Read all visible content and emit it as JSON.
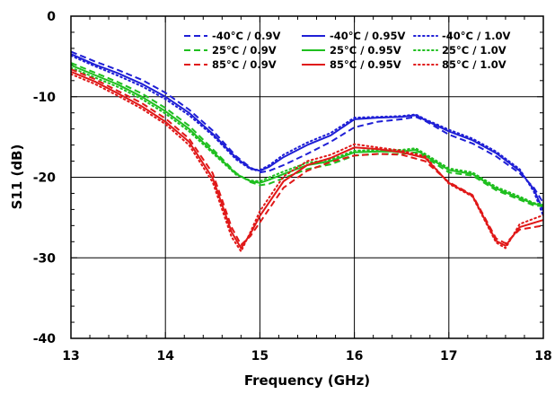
{
  "chart_data": {
    "type": "line",
    "title": "",
    "xlabel": "Frequency (GHz)",
    "ylabel": "S11 (dB)",
    "xlim": [
      13,
      18
    ],
    "ylim": [
      -40,
      0
    ],
    "x_ticks": [
      13,
      14,
      15,
      16,
      17,
      18
    ],
    "y_ticks": [
      0,
      -10,
      -20,
      -30,
      -40
    ],
    "x_tick_labels": [
      "13",
      "14",
      "15",
      "16",
      "17",
      "18"
    ],
    "y_tick_labels": [
      "0",
      "-10",
      "-20",
      "-30",
      "-40"
    ],
    "grid": true,
    "legend_position": "top-right",
    "series": [
      {
        "name": "-40°C / 0.9V",
        "color": "#1f1fd6",
        "dash": "dashed",
        "x": [
          13,
          13.25,
          13.5,
          13.75,
          14,
          14.25,
          14.5,
          14.75,
          14.9,
          15,
          15.1,
          15.25,
          15.5,
          15.75,
          16,
          16.25,
          16.5,
          16.65,
          16.75,
          17,
          17.25,
          17.5,
          17.75,
          17.9,
          18
        ],
        "y": [
          -4.4,
          -5.6,
          -6.7,
          -7.9,
          -9.5,
          -11.6,
          -14.2,
          -17.4,
          -18.8,
          -19.4,
          -19.2,
          -18.5,
          -17.1,
          -15.6,
          -13.8,
          -13.1,
          -12.8,
          -12.5,
          -13,
          -14.7,
          -15.8,
          -17.4,
          -19.5,
          -21.3,
          -23.2
        ]
      },
      {
        "name": "-40°C / 0.95V",
        "color": "#1f1fd6",
        "dash": "solid",
        "x": [
          13,
          13.25,
          13.5,
          13.75,
          14,
          14.25,
          14.5,
          14.75,
          14.9,
          15,
          15.1,
          15.25,
          15.5,
          15.75,
          16,
          16.25,
          16.5,
          16.65,
          16.75,
          17,
          17.25,
          17.5,
          17.75,
          17.9,
          18
        ],
        "y": [
          -4.7,
          -6,
          -7.1,
          -8.4,
          -10,
          -12,
          -14.6,
          -17.6,
          -18.9,
          -19.2,
          -18.7,
          -17.5,
          -16,
          -14.8,
          -12.8,
          -12.6,
          -12.5,
          -12.3,
          -12.9,
          -14.3,
          -15.4,
          -17,
          -19.2,
          -21.5,
          -24.2
        ]
      },
      {
        "name": "-40°C / 1.0V",
        "color": "#1f1fd6",
        "dash": "dotted",
        "x": [
          13,
          13.25,
          13.5,
          13.75,
          14,
          14.25,
          14.5,
          14.75,
          14.9,
          15,
          15.1,
          15.25,
          15.5,
          15.75,
          16,
          16.25,
          16.5,
          16.65,
          16.75,
          17,
          17.25,
          17.5,
          17.75,
          17.9,
          18
        ],
        "y": [
          -4.9,
          -6.2,
          -7.4,
          -8.7,
          -10.3,
          -12.3,
          -14.8,
          -17.8,
          -19,
          -19.1,
          -18.5,
          -17.2,
          -15.7,
          -14.5,
          -12.6,
          -12.5,
          -12.4,
          -12.2,
          -12.8,
          -14.1,
          -15.2,
          -16.8,
          -19,
          -21.8,
          -24.8
        ]
      },
      {
        "name": "25°C / 0.9V",
        "color": "#1fbf1f",
        "dash": "dashed",
        "x": [
          13,
          13.25,
          13.5,
          13.75,
          14,
          14.25,
          14.5,
          14.75,
          14.9,
          15,
          15.1,
          15.25,
          15.5,
          15.75,
          16,
          16.25,
          16.5,
          16.65,
          16.75,
          17,
          17.25,
          17.5,
          17.75,
          17.9,
          18
        ],
        "y": [
          -5.8,
          -7,
          -8.2,
          -9.6,
          -11.4,
          -13.6,
          -16.5,
          -19.5,
          -20.6,
          -21,
          -20.8,
          -20.1,
          -19,
          -18.4,
          -17.3,
          -17.1,
          -17.1,
          -16.9,
          -17.5,
          -19.4,
          -19.8,
          -21.6,
          -22.8,
          -23.5,
          -23.6
        ]
      },
      {
        "name": "25°C / 0.95V",
        "color": "#1fbf1f",
        "dash": "solid",
        "x": [
          13,
          13.25,
          13.5,
          13.75,
          14,
          14.25,
          14.5,
          14.75,
          14.9,
          15,
          15.1,
          15.25,
          15.5,
          15.75,
          16,
          16.25,
          16.5,
          16.65,
          16.75,
          17,
          17.25,
          17.5,
          17.75,
          17.9,
          18
        ],
        "y": [
          -6.1,
          -7.3,
          -8.5,
          -10,
          -11.8,
          -14,
          -16.8,
          -19.6,
          -20.5,
          -20.7,
          -20.3,
          -19.6,
          -18.5,
          -18,
          -16.9,
          -16.8,
          -16.8,
          -16.6,
          -17.3,
          -19.1,
          -19.6,
          -21.4,
          -22.6,
          -23.3,
          -23.5
        ]
      },
      {
        "name": "25°C / 1.0V",
        "color": "#1fbf1f",
        "dash": "dotted",
        "x": [
          13,
          13.25,
          13.5,
          13.75,
          14,
          14.25,
          14.5,
          14.75,
          14.9,
          15,
          15.1,
          15.25,
          15.5,
          15.75,
          16,
          16.25,
          16.5,
          16.65,
          16.75,
          17,
          17.25,
          17.5,
          17.75,
          17.9,
          18
        ],
        "y": [
          -6.4,
          -7.6,
          -8.8,
          -10.3,
          -12.1,
          -14.3,
          -17,
          -19.7,
          -20.4,
          -20.5,
          -20,
          -19.3,
          -18.2,
          -17.8,
          -16.7,
          -16.6,
          -16.6,
          -16.4,
          -17.1,
          -18.9,
          -19.4,
          -21.2,
          -22.4,
          -23.2,
          -23.4
        ]
      },
      {
        "name": "85°C / 0.9V",
        "color": "#e01818",
        "dash": "dashed",
        "x": [
          13,
          13.25,
          13.5,
          13.75,
          14,
          14.25,
          14.5,
          14.6,
          14.7,
          14.8,
          14.9,
          15,
          15.25,
          15.5,
          15.75,
          16,
          16.25,
          16.5,
          16.75,
          17,
          17.25,
          17.5,
          17.6,
          17.75,
          18
        ],
        "y": [
          -6.6,
          -7.8,
          -9.3,
          -10.8,
          -12.7,
          -15.2,
          -19.5,
          -22.8,
          -26.2,
          -28.4,
          -27.3,
          -25.6,
          -21.3,
          -19.2,
          -18.1,
          -17.3,
          -17.1,
          -17.2,
          -18,
          -20.6,
          -22.2,
          -27.6,
          -28.2,
          -26.5,
          -26
        ]
      },
      {
        "name": "85°C / 0.95V",
        "color": "#e01818",
        "dash": "solid",
        "x": [
          13,
          13.25,
          13.5,
          13.75,
          14,
          14.25,
          14.5,
          14.6,
          14.7,
          14.8,
          14.9,
          15,
          15.25,
          15.5,
          15.75,
          16,
          16.25,
          16.5,
          16.75,
          17,
          17.25,
          17.5,
          17.6,
          17.75,
          18
        ],
        "y": [
          -6.9,
          -8.1,
          -9.6,
          -11.2,
          -13.1,
          -15.6,
          -20.1,
          -23.4,
          -26.8,
          -28.8,
          -27,
          -24.8,
          -20.5,
          -18.5,
          -17.6,
          -16.3,
          -16.5,
          -16.9,
          -17.6,
          -20.7,
          -22.3,
          -27.9,
          -28.5,
          -26.2,
          -25.3
        ]
      },
      {
        "name": "85°C / 1.0V",
        "color": "#e01818",
        "dash": "dotted",
        "x": [
          13,
          13.25,
          13.5,
          13.75,
          14,
          14.25,
          14.5,
          14.6,
          14.7,
          14.8,
          14.9,
          15,
          15.25,
          15.5,
          15.75,
          16,
          16.25,
          16.5,
          16.75,
          17,
          17.25,
          17.5,
          17.6,
          17.75,
          18
        ],
        "y": [
          -7.2,
          -8.4,
          -9.9,
          -11.5,
          -13.4,
          -16,
          -20.6,
          -24,
          -27.4,
          -29.2,
          -26.8,
          -24.2,
          -19.9,
          -18,
          -17.2,
          -15.9,
          -16.3,
          -16.7,
          -17.4,
          -20.8,
          -22.4,
          -28.1,
          -28.8,
          -25.8,
          -24.7
        ]
      }
    ]
  }
}
